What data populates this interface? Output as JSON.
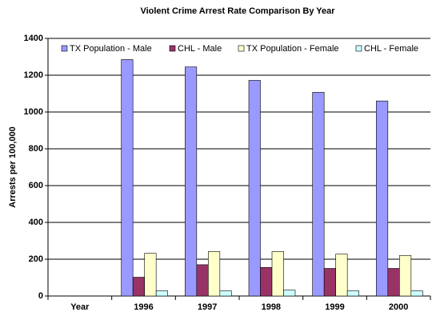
{
  "chart_data": {
    "type": "bar",
    "title": "Violent Crime Arrest Rate Comparison By Year",
    "y_label": "Arrests per 100,000",
    "categories": [
      "Year",
      "1996",
      "1997",
      "1998",
      "1999",
      "2000"
    ],
    "series": [
      {
        "name": "TX Population - Male",
        "color": "#9999ff",
        "values": [
          null,
          1285,
          1245,
          1172,
          1107,
          1060
        ]
      },
      {
        "name": "CHL - Male",
        "color": "#993366",
        "values": [
          null,
          102,
          170,
          155,
          150,
          150
        ]
      },
      {
        "name": "TX Population - Female",
        "color": "#ffffcc",
        "values": [
          null,
          232,
          242,
          242,
          228,
          220
        ]
      },
      {
        "name": "CHL - Female",
        "color": "#ccffff",
        "values": [
          null,
          28,
          28,
          32,
          28,
          28
        ]
      }
    ],
    "ylim": [
      0,
      1400
    ],
    "yticks": [
      0,
      200,
      400,
      600,
      800,
      1000,
      1200,
      1400
    ],
    "grid": true,
    "legend": "top"
  }
}
